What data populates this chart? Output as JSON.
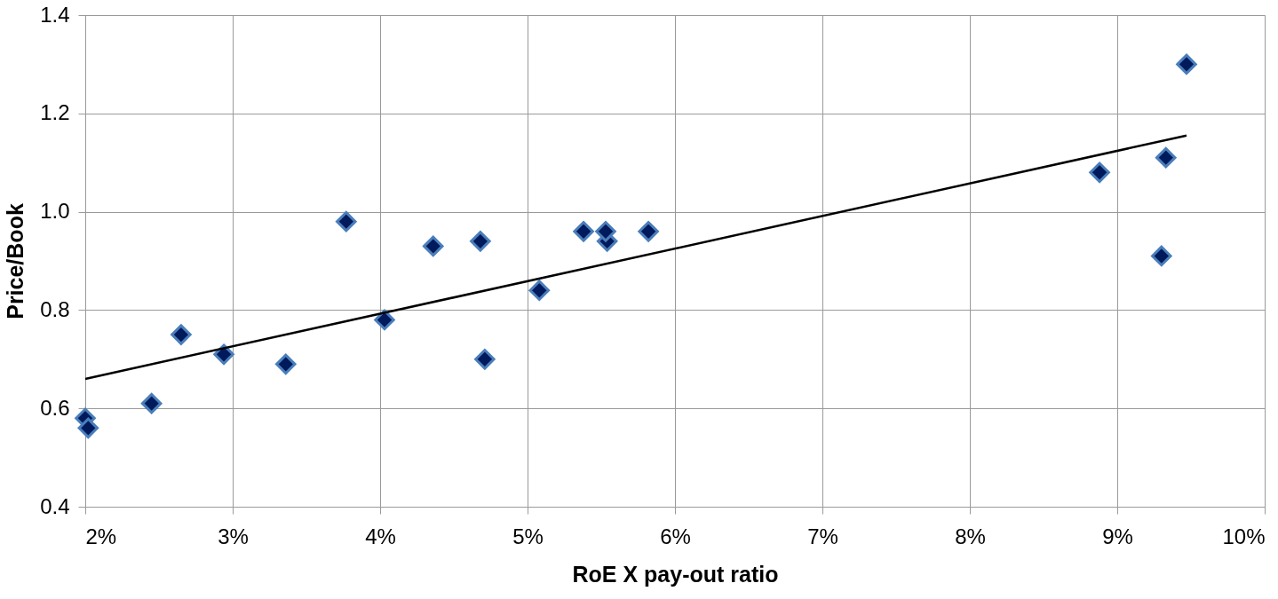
{
  "chart_data": {
    "type": "scatter",
    "xlabel": "RoE X pay-out ratio",
    "ylabel": "Price/Book",
    "xlim": [
      2,
      10
    ],
    "ylim": [
      0.4,
      1.4
    ],
    "xticks": [
      {
        "value": 2,
        "label": "2%"
      },
      {
        "value": 3,
        "label": "3%"
      },
      {
        "value": 4,
        "label": "4%"
      },
      {
        "value": 5,
        "label": "5%"
      },
      {
        "value": 6,
        "label": "6%"
      },
      {
        "value": 7,
        "label": "7%"
      },
      {
        "value": 8,
        "label": "8%"
      },
      {
        "value": 9,
        "label": "9%"
      },
      {
        "value": 10,
        "label": "10%"
      }
    ],
    "yticks": [
      {
        "value": 0.4,
        "label": "0.4"
      },
      {
        "value": 0.6,
        "label": "0.6"
      },
      {
        "value": 0.8,
        "label": "0.8"
      },
      {
        "value": 1.0,
        "label": "1.0"
      },
      {
        "value": 1.2,
        "label": "1.2"
      },
      {
        "value": 1.4,
        "label": "1.4"
      }
    ],
    "grid": true,
    "marker": "diamond",
    "series": [
      {
        "color": "#001a5c",
        "x": [
          2.0,
          2.02,
          2.45,
          2.65,
          2.94,
          3.36,
          3.77,
          4.03,
          4.36,
          4.68,
          4.71,
          5.08,
          5.38,
          5.54,
          5.53,
          5.82,
          8.88,
          9.3,
          9.33,
          9.47
        ],
        "values": [
          0.58,
          0.56,
          0.61,
          0.75,
          0.71,
          0.69,
          0.98,
          0.78,
          0.93,
          0.94,
          0.7,
          0.84,
          0.96,
          0.94,
          0.96,
          0.96,
          1.08,
          0.91,
          1.11,
          1.3
        ]
      },
      {
        "type": "line",
        "color": "#000000",
        "x": [
          2.0,
          9.47
        ],
        "values": [
          0.66,
          1.155
        ],
        "marker": "none"
      }
    ]
  }
}
